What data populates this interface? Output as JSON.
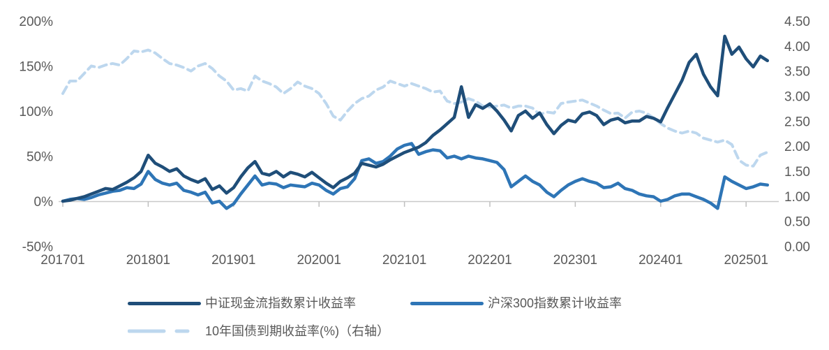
{
  "chart_data": {
    "type": "line",
    "title": "",
    "x_start": "2017-01",
    "x_step": "1 month",
    "x_axis": {
      "tick_labels": [
        "201701",
        "201801",
        "201901",
        "202001",
        "202101",
        "202201",
        "202301",
        "202401",
        "202501"
      ],
      "ticks_every_months": 12
    },
    "left_axis": {
      "tick_labels": [
        "200%",
        "150%",
        "100%",
        "50%",
        "0%",
        "-50%"
      ],
      "tick_values": [
        200,
        150,
        100,
        50,
        0,
        -50
      ],
      "min": -50,
      "max": 200,
      "unit": "%"
    },
    "right_axis": {
      "tick_labels": [
        "4.50",
        "4.00",
        "3.50",
        "3.00",
        "2.50",
        "2.00",
        "1.50",
        "1.00",
        "0.50",
        "0.00"
      ],
      "tick_values": [
        4.5,
        4.0,
        3.5,
        3.0,
        2.5,
        2.0,
        1.5,
        1.0,
        0.5,
        0.0
      ],
      "min": 0,
      "max": 4.5
    },
    "grid": "none",
    "legend_position": "bottom",
    "series": [
      {
        "key": "csi-cashflow-line",
        "name": "中证现金流指数累计收益率",
        "axis": "left",
        "color": "#1F4E79",
        "line_style": "solid",
        "values": [
          0,
          1,
          3,
          5,
          8,
          11,
          14,
          13,
          17,
          21,
          26,
          33,
          51,
          42,
          38,
          33,
          36,
          28,
          24,
          21,
          25,
          13,
          17,
          9,
          15,
          27,
          37,
          44,
          31,
          29,
          33,
          27,
          32,
          30,
          27,
          32,
          26,
          20,
          15,
          22,
          26,
          31,
          42,
          40,
          38,
          41,
          46,
          50,
          54,
          57,
          60,
          65,
          73,
          79,
          86,
          93,
          127,
          93,
          107,
          103,
          108,
          100,
          90,
          78,
          95,
          100,
          92,
          98,
          85,
          75,
          84,
          90,
          88,
          97,
          99,
          95,
          85,
          90,
          92,
          87,
          89,
          89,
          94,
          92,
          88,
          104,
          119,
          134,
          154,
          163,
          141,
          127,
          117,
          183,
          163,
          171,
          158,
          149,
          161,
          156
        ]
      },
      {
        "key": "csi300-line",
        "name": "沪深300指数累计收益率",
        "axis": "left",
        "color": "#2E75B6",
        "line_style": "solid",
        "values": [
          0,
          2,
          3,
          2,
          4,
          7,
          9,
          11,
          12,
          15,
          14,
          19,
          33,
          24,
          20,
          18,
          20,
          12,
          10,
          7,
          10,
          -2,
          0,
          -8,
          -3,
          8,
          18,
          28,
          18,
          20,
          19,
          15,
          18,
          17,
          16,
          20,
          18,
          12,
          8,
          14,
          16,
          25,
          45,
          47,
          42,
          44,
          50,
          58,
          62,
          64,
          52,
          55,
          57,
          56,
          48,
          50,
          47,
          50,
          48,
          47,
          45,
          43,
          35,
          16,
          22,
          28,
          22,
          18,
          10,
          5,
          12,
          18,
          22,
          25,
          22,
          20,
          15,
          16,
          20,
          14,
          12,
          8,
          6,
          5,
          0,
          2,
          6,
          8,
          8,
          5,
          2,
          -2,
          -8,
          27,
          22,
          18,
          14,
          16,
          19,
          18
        ]
      },
      {
        "key": "treasury-10y-line",
        "name": "10年国债到期收益率(%)（右轴）",
        "axis": "right",
        "color": "#BDD7EE",
        "line_style": "dashed",
        "values": [
          3.05,
          3.3,
          3.3,
          3.45,
          3.6,
          3.57,
          3.62,
          3.65,
          3.62,
          3.75,
          3.9,
          3.88,
          3.92,
          3.86,
          3.75,
          3.65,
          3.62,
          3.57,
          3.5,
          3.6,
          3.65,
          3.55,
          3.4,
          3.3,
          3.12,
          3.15,
          3.1,
          3.4,
          3.3,
          3.25,
          3.18,
          3.05,
          3.15,
          3.28,
          3.2,
          3.15,
          3.05,
          2.85,
          2.6,
          2.52,
          2.7,
          2.85,
          2.95,
          3.0,
          3.12,
          3.18,
          3.3,
          3.25,
          3.2,
          3.25,
          3.2,
          3.15,
          3.08,
          3.1,
          2.9,
          2.85,
          2.88,
          2.95,
          2.9,
          2.8,
          2.78,
          2.8,
          2.82,
          2.76,
          2.8,
          2.8,
          2.76,
          2.63,
          2.68,
          2.66,
          2.85,
          2.88,
          2.9,
          2.92,
          2.86,
          2.8,
          2.72,
          2.65,
          2.66,
          2.56,
          2.68,
          2.7,
          2.66,
          2.56,
          2.45,
          2.36,
          2.3,
          2.26,
          2.3,
          2.26,
          2.16,
          2.12,
          2.08,
          2.12,
          2.03,
          1.72,
          1.62,
          1.6,
          1.82,
          1.88
        ]
      }
    ],
    "style": {
      "axis_line_color": "#C9C9C9",
      "tick_color": "#BFBFBF",
      "label_color": "#595959",
      "background": "#ffffff"
    }
  }
}
